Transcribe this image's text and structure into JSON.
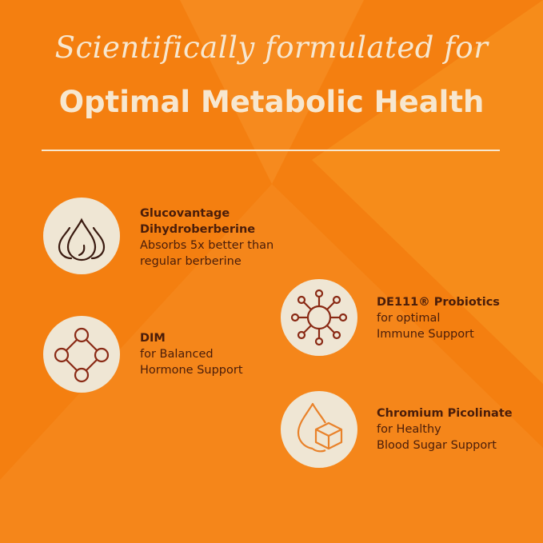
{
  "header": {
    "subtitle": "Scientifically formulated for",
    "title": "Optimal Metabolic Health"
  },
  "colors": {
    "background": "#f47f10",
    "circle": "#efe6d4",
    "text": "#4a1d0a",
    "heading": "#f7e7cf",
    "icon_dark": "#3a1a10",
    "icon_red": "#8a2a15",
    "icon_orange": "#e9822a"
  },
  "features": [
    {
      "icon": "drops-icon",
      "name_lines": [
        "Glucovantage",
        "Dihydroberberine"
      ],
      "desc_lines": [
        "Absorbs 5x better than",
        "regular berberine"
      ]
    },
    {
      "icon": "molecule-icon",
      "name_lines": [
        "DIM"
      ],
      "desc_lines": [
        "for Balanced",
        "Hormone Support"
      ]
    },
    {
      "icon": "virus-icon",
      "name_lines": [
        "DE111® Probiotics"
      ],
      "desc_lines": [
        "for optimal",
        "Immune Support"
      ]
    },
    {
      "icon": "sugar-drop-icon",
      "name_lines": [
        "Chromium Picolinate"
      ],
      "desc_lines": [
        "for Healthy",
        "Blood Sugar Support"
      ]
    }
  ]
}
